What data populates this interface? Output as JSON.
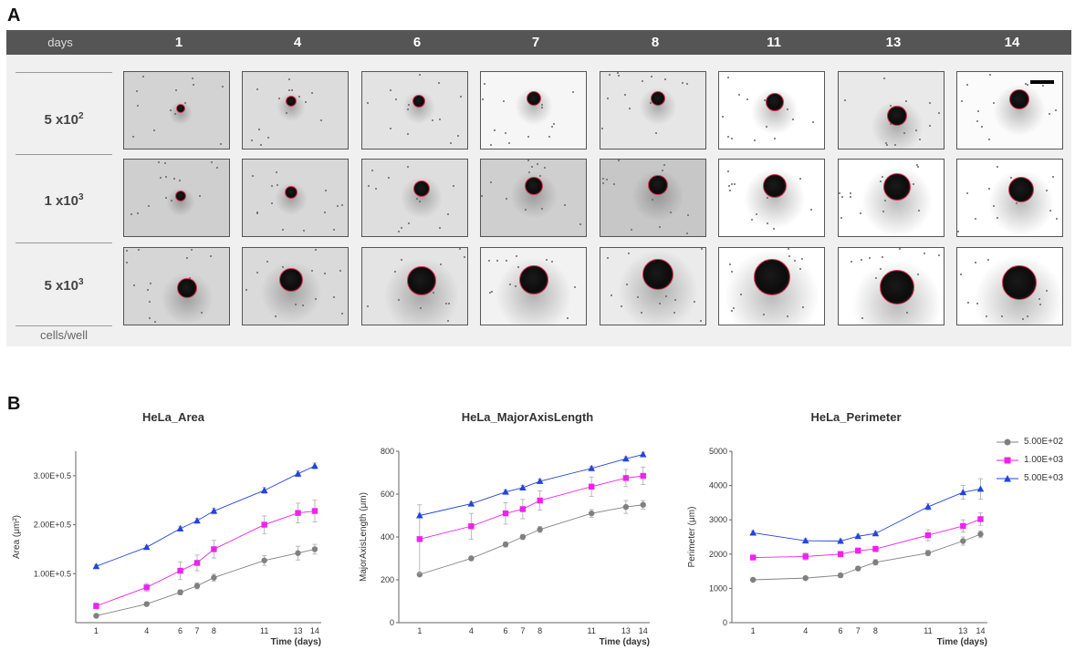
{
  "panel_a": {
    "label": "A",
    "header": {
      "days_label": "days",
      "days": [
        "1",
        "4",
        "6",
        "7",
        "8",
        "11",
        "13",
        "14"
      ]
    },
    "rows": [
      {
        "base": "5 x10",
        "exp": "2"
      },
      {
        "base": "1 x10",
        "exp": "3"
      },
      {
        "base": "5 x10",
        "exp": "3"
      }
    ],
    "footer_label": "cells/well",
    "colors": {
      "header_bg": "#555555",
      "panel_bg": "#f0f0f0",
      "contour": "#e03050"
    }
  },
  "panel_b": {
    "label": "B",
    "legend": [
      {
        "name": "5.00E+02",
        "color": "#808080",
        "marker": "circle"
      },
      {
        "name": "1.00E+03",
        "color": "#ee22ee",
        "marker": "square"
      },
      {
        "name": "5.00E+03",
        "color": "#2244dd",
        "marker": "triangle"
      }
    ]
  },
  "chart_data": [
    {
      "type": "line",
      "title": "HeLa_Area",
      "xlabel": "Time (days)",
      "ylabel": "Area (μm²)",
      "x": [
        1,
        4,
        6,
        7,
        8,
        11,
        13,
        14
      ],
      "ylim": [
        0,
        350000
      ],
      "yticks": [
        100000,
        200000,
        300000
      ],
      "ytick_labels": [
        "1.00E+0.5",
        "2.00E+0.5",
        "3.00E+0.5"
      ],
      "series": [
        {
          "name": "5.00E+02",
          "values": [
            14000,
            38000,
            62000,
            75000,
            92000,
            127000,
            142000,
            150000
          ],
          "errors": [
            3000,
            4000,
            5000,
            6000,
            7000,
            10000,
            14000,
            10000
          ]
        },
        {
          "name": "1.00E+03",
          "values": [
            34000,
            72000,
            106000,
            122000,
            150000,
            200000,
            224000,
            228000
          ],
          "errors": [
            6000,
            8000,
            18000,
            16000,
            18000,
            18000,
            20000,
            22000
          ]
        },
        {
          "name": "5.00E+03",
          "values": [
            115000,
            154000,
            192000,
            208000,
            228000,
            270000,
            304000,
            320000
          ],
          "errors": [
            3000,
            4000,
            5000,
            5000,
            6000,
            6000,
            6000,
            6000
          ]
        }
      ]
    },
    {
      "type": "line",
      "title": "HeLa_MajorAxisLength",
      "xlabel": "Time (days)",
      "ylabel": "MajorAxisLength (μm)",
      "x": [
        1,
        4,
        6,
        7,
        8,
        11,
        13,
        14
      ],
      "ylim": [
        0,
        800
      ],
      "yticks": [
        0,
        200,
        400,
        600,
        800
      ],
      "ytick_labels": [
        "0",
        "200",
        "400",
        "600",
        "800"
      ],
      "series": [
        {
          "name": "5.00E+02",
          "values": [
            225,
            300,
            365,
            400,
            435,
            510,
            540,
            550
          ],
          "errors": [
            8,
            10,
            12,
            12,
            14,
            18,
            30,
            20
          ]
        },
        {
          "name": "1.00E+03",
          "values": [
            390,
            450,
            510,
            530,
            570,
            635,
            675,
            685
          ],
          "errors": [
            160,
            60,
            50,
            45,
            45,
            45,
            40,
            40
          ]
        },
        {
          "name": "5.00E+03",
          "values": [
            500,
            555,
            610,
            630,
            660,
            720,
            765,
            785
          ],
          "errors": [
            10,
            10,
            10,
            10,
            10,
            10,
            10,
            10
          ]
        }
      ]
    },
    {
      "type": "line",
      "title": "HeLa_Perimeter",
      "xlabel": "Time (days)",
      "ylabel": "Perimeter (μm)",
      "x": [
        1,
        4,
        6,
        7,
        8,
        11,
        13,
        14
      ],
      "ylim": [
        0,
        5000
      ],
      "yticks": [
        0,
        1000,
        2000,
        3000,
        4000,
        5000
      ],
      "ytick_labels": [
        "0",
        "1000",
        "2000",
        "3000",
        "4000",
        "5000"
      ],
      "series": [
        {
          "name": "5.00E+02",
          "values": [
            1250,
            1300,
            1380,
            1580,
            1760,
            2030,
            2380,
            2580
          ],
          "errors": [
            40,
            40,
            60,
            60,
            80,
            80,
            120,
            100
          ]
        },
        {
          "name": "1.00E+03",
          "values": [
            1900,
            1930,
            2000,
            2100,
            2150,
            2550,
            2820,
            3020
          ],
          "errors": [
            40,
            100,
            80,
            80,
            80,
            160,
            180,
            180
          ]
        },
        {
          "name": "5.00E+03",
          "values": [
            2620,
            2390,
            2380,
            2520,
            2600,
            3380,
            3800,
            3900
          ],
          "errors": [
            60,
            60,
            60,
            60,
            60,
            100,
            200,
            300
          ]
        }
      ]
    }
  ]
}
